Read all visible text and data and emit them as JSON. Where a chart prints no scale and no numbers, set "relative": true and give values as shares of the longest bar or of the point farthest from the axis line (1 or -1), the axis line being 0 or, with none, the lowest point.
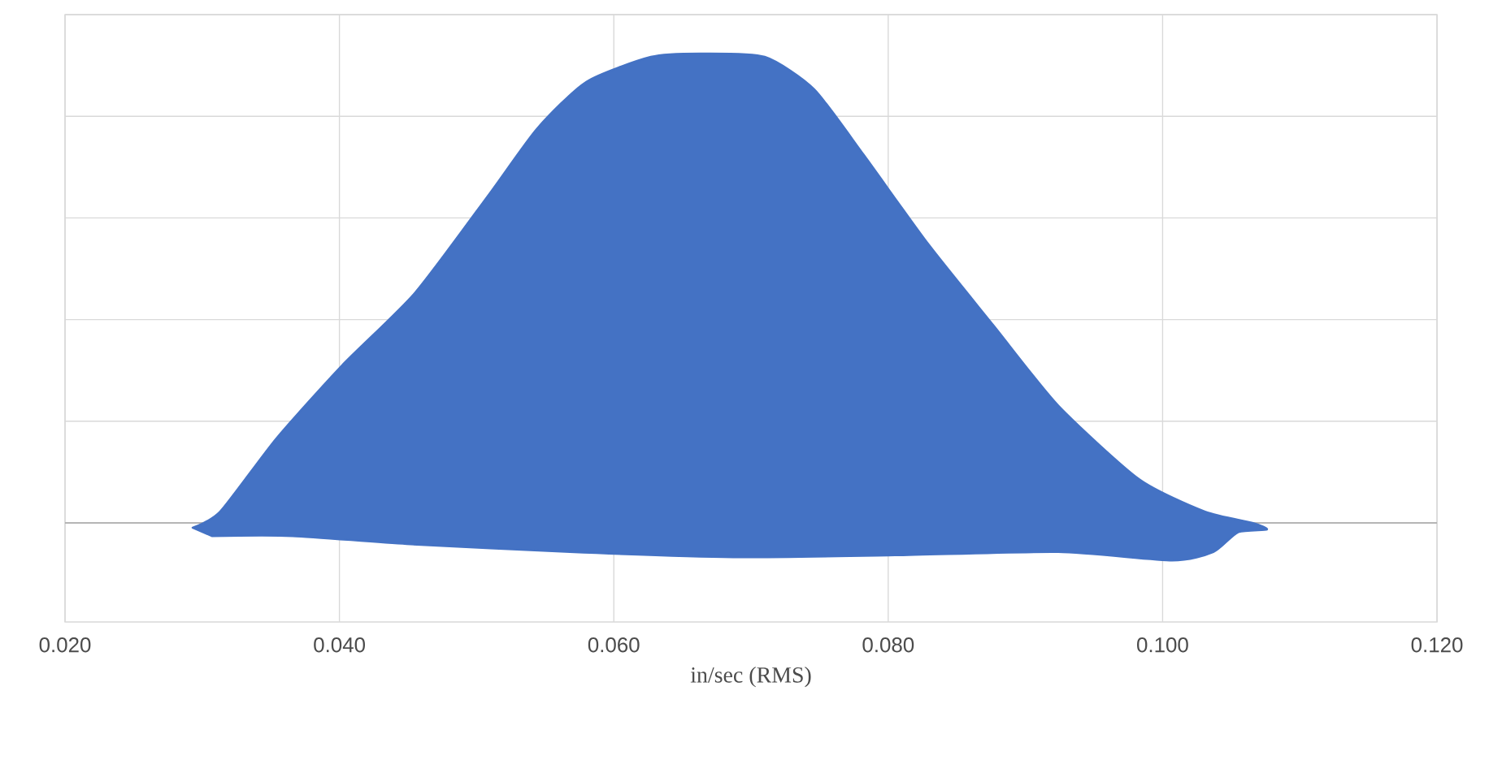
{
  "chart_data": {
    "type": "area",
    "xlabel": "in/sec (RMS)",
    "relative": true,
    "grid": true,
    "marker": "none",
    "line_style": "solid",
    "xlim": [
      0.02,
      0.12
    ],
    "xticks": [
      {
        "value": 0.02,
        "label": "0.020"
      },
      {
        "value": 0.04,
        "label": "0.040"
      },
      {
        "value": 0.06,
        "label": "0.060"
      },
      {
        "value": 0.08,
        "label": "0.080"
      },
      {
        "value": 0.1,
        "label": "0.100"
      },
      {
        "value": 0.12,
        "label": "0.120"
      }
    ],
    "series": [
      {
        "color": "#4472c4",
        "x": [
          0.0293,
          0.0313,
          0.0354,
          0.0402,
          0.0455,
          0.0509,
          0.0544,
          0.058,
          0.0627,
          0.0663,
          0.071,
          0.0746,
          0.0782,
          0.0829,
          0.0877,
          0.0924,
          0.0983,
          0.1031,
          0.1066,
          0.1076,
          0.1055,
          0.1037,
          0.1007,
          0.0924,
          0.0805,
          0.0687,
          0.0568,
          0.0449,
          0.0366,
          0.0307
        ],
        "values": [
          -0.01,
          0.024,
          0.18,
          0.336,
          0.49,
          0.7,
          0.84,
          0.94,
          0.993,
          1.0,
          0.993,
          0.924,
          0.785,
          0.595,
          0.42,
          0.25,
          0.093,
          0.024,
          0.0,
          -0.014,
          -0.02,
          -0.062,
          -0.08,
          -0.062,
          -0.069,
          -0.073,
          -0.062,
          -0.045,
          -0.028,
          -0.028
        ]
      }
    ]
  }
}
